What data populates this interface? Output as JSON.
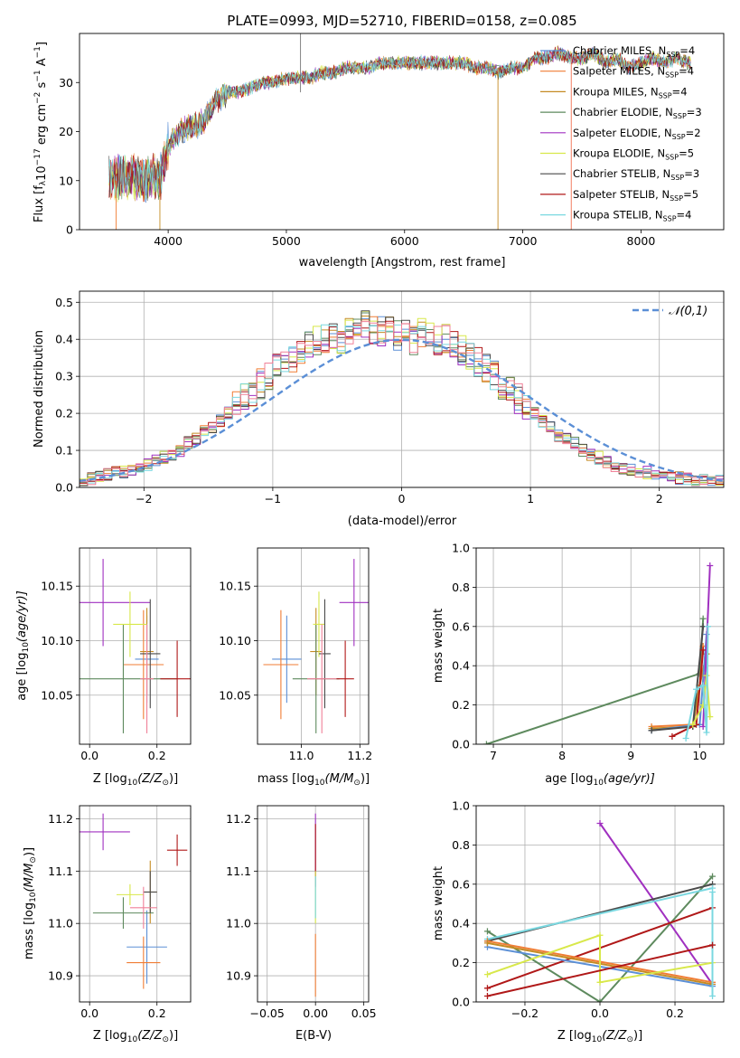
{
  "palette": {
    "Chabrier MILES": "#5b8fd6",
    "Salpeter MILES": "#f07d35",
    "Kroupa MILES": "#c58b23",
    "Chabrier ELODIE": "#5e8a5e",
    "Salpeter ELODIE": "#a030c0",
    "Kroupa ELODIE": "#d8e84a",
    "Chabrier STELIB": "#4a4a4a",
    "Salpeter STELIB": "#b01818",
    "Kroupa STELIB": "#7ad8e0",
    "gaussian": "#5b8fd6",
    "pink": "#f08098"
  },
  "chart_data": [
    {
      "id": "spectrum",
      "type": "line",
      "title": "PLATE=0993, MJD=52710, FIBERID=0158, z=0.085",
      "xlabel": "wavelength [Angstrom, rest frame]",
      "ylabel": "Flux [f",
      "ylabel_unit": "10",
      "ylabel_tail": " erg cm",
      "ylabel_tail2": " s",
      "ylabel_tail3": " A",
      "xlim": [
        3250,
        8700
      ],
      "ylim": [
        0,
        40
      ],
      "xticks": [
        4000,
        5000,
        6000,
        7000,
        8000
      ],
      "yticks": [
        0,
        10,
        20,
        30
      ],
      "legend_position": "right",
      "series": [
        {
          "name": "Chabrier MILES",
          "nssp": "4"
        },
        {
          "name": "Salpeter MILES",
          "nssp": "4"
        },
        {
          "name": "Kroupa MILES",
          "nssp": "4"
        },
        {
          "name": "Chabrier ELODIE",
          "nssp": "3"
        },
        {
          "name": "Salpeter ELODIE",
          "nssp": "2"
        },
        {
          "name": "Kroupa ELODIE",
          "nssp": "5"
        },
        {
          "name": "Chabrier STELIB",
          "nssp": "3"
        },
        {
          "name": "Salpeter STELIB",
          "nssp": "5"
        },
        {
          "name": "Kroupa STELIB",
          "nssp": "4"
        }
      ],
      "continuum": [
        [
          3500,
          10
        ],
        [
          3600,
          11
        ],
        [
          3700,
          11
        ],
        [
          3800,
          10
        ],
        [
          3850,
          11
        ],
        [
          3930,
          10
        ],
        [
          4000,
          17
        ],
        [
          4100,
          20
        ],
        [
          4200,
          21
        ],
        [
          4300,
          22
        ],
        [
          4400,
          26
        ],
        [
          4500,
          28
        ],
        [
          4600,
          28
        ],
        [
          4700,
          29
        ],
        [
          4800,
          30
        ],
        [
          4900,
          30
        ],
        [
          5000,
          31
        ],
        [
          5100,
          31
        ],
        [
          5200,
          31
        ],
        [
          5300,
          32
        ],
        [
          5400,
          32
        ],
        [
          5500,
          33
        ],
        [
          5600,
          33
        ],
        [
          5700,
          33
        ],
        [
          5800,
          34
        ],
        [
          5900,
          34
        ],
        [
          6000,
          34
        ],
        [
          6100,
          34
        ],
        [
          6200,
          34
        ],
        [
          6300,
          34
        ],
        [
          6400,
          34
        ],
        [
          6500,
          34
        ],
        [
          6600,
          33
        ],
        [
          6700,
          33
        ],
        [
          6800,
          32
        ],
        [
          6900,
          33
        ],
        [
          7000,
          33
        ],
        [
          7100,
          35
        ],
        [
          7200,
          35
        ],
        [
          7300,
          36
        ],
        [
          7400,
          35
        ],
        [
          7500,
          35
        ],
        [
          7600,
          36
        ],
        [
          7700,
          34
        ],
        [
          7800,
          35
        ],
        [
          7900,
          33
        ],
        [
          8000,
          34
        ],
        [
          8100,
          35
        ],
        [
          8200,
          34
        ],
        [
          8300,
          35
        ],
        [
          8400,
          34
        ]
      ],
      "features": {
        "gray_spike": [
          5120,
          40
        ],
        "green_line": [
          6790,
          0
        ],
        "red_line": [
          7410,
          0
        ],
        "gray_drop": [
          3930,
          0
        ],
        "orange_drop": [
          3560,
          0
        ]
      }
    },
    {
      "id": "residual_hist",
      "type": "line",
      "xlabel": "(data-model)/error",
      "ylabel": "Normed distribution",
      "xlim": [
        -2.5,
        2.5
      ],
      "ylim": [
        0,
        0.53
      ],
      "xticks": [
        -2,
        -1,
        0,
        1,
        2
      ],
      "yticks": [
        0,
        0.1,
        0.2,
        0.3,
        0.4,
        0.5
      ],
      "legend": "𝒩(0,1)",
      "legend_position": "top-right",
      "bin_width": 0.1,
      "bin_start": -2.5,
      "base_hist": [
        0.02,
        0.025,
        0.03,
        0.035,
        0.04,
        0.04,
        0.05,
        0.05,
        0.06,
        0.07,
        0.08,
        0.09,
        0.1,
        0.12,
        0.13,
        0.15,
        0.16,
        0.18,
        0.2,
        0.22,
        0.24,
        0.26,
        0.28,
        0.3,
        0.32,
        0.34,
        0.35,
        0.37,
        0.38,
        0.4,
        0.4,
        0.41,
        0.4,
        0.42,
        0.43,
        0.44,
        0.43,
        0.42,
        0.42,
        0.41,
        0.41,
        0.4,
        0.42,
        0.41,
        0.4,
        0.4,
        0.38,
        0.37,
        0.36,
        0.34,
        0.32,
        0.3,
        0.27,
        0.26,
        0.24,
        0.22,
        0.2,
        0.18,
        0.16,
        0.14,
        0.13,
        0.12,
        0.1,
        0.09,
        0.08,
        0.07,
        0.06,
        0.05,
        0.05,
        0.04,
        0.04,
        0.035,
        0.03,
        0.03,
        0.025,
        0.025,
        0.02,
        0.02,
        0.02,
        0.02
      ]
    },
    {
      "id": "age_vs_Z",
      "type": "scatter",
      "xlabel": "Z [log",
      "xlabel_sub": "10",
      "xlabel_tail": "(Z/Z",
      "ylabel": "age  [log",
      "ylabel_sub": "10",
      "ylabel_tail": "(age/yr)]",
      "xlim": [
        -0.03,
        0.3
      ],
      "ylim": [
        10.005,
        10.185
      ],
      "xticks": [
        0.0,
        0.2
      ],
      "yticks": [
        10.05,
        10.1,
        10.15
      ],
      "points": [
        {
          "series": "Chabrier MILES",
          "x": 0.17,
          "y": 10.083,
          "xerr": 0.035,
          "yerr": 0.04
        },
        {
          "series": "Salpeter MILES",
          "x": 0.16,
          "y": 10.078,
          "xerr": 0.06,
          "yerr": 0.05
        },
        {
          "series": "Kroupa MILES",
          "x": 0.17,
          "y": 10.09,
          "xerr": 0.02,
          "yerr": 0.04
        },
        {
          "series": "Chabrier ELODIE",
          "x": 0.1,
          "y": 10.065,
          "xerr": 0.16,
          "yerr": 0.05
        },
        {
          "series": "Salpeter ELODIE",
          "x": 0.04,
          "y": 10.135,
          "xerr": 0.14,
          "yerr": 0.04
        },
        {
          "series": "Kroupa ELODIE",
          "x": 0.12,
          "y": 10.115,
          "xerr": 0.05,
          "yerr": 0.03
        },
        {
          "series": "Chabrier STELIB",
          "x": 0.18,
          "y": 10.088,
          "xerr": 0.03,
          "yerr": 0.05
        },
        {
          "series": "Salpeter STELIB",
          "x": 0.26,
          "y": 10.065,
          "xerr": 0.05,
          "yerr": 0.035
        },
        {
          "series": "pink",
          "x": 0.17,
          "y": 10.065,
          "xerr": 0.02,
          "yerr": 0.05
        }
      ]
    },
    {
      "id": "age_vs_mass",
      "type": "scatter",
      "xlabel": "mass [log",
      "xlabel_sub": "10",
      "xlabel_tail": "(M/M",
      "xlim": [
        10.85,
        11.23
      ],
      "ylim": [
        10.005,
        10.185
      ],
      "xticks": [
        11.0,
        11.2
      ],
      "yticks": [
        10.05,
        10.1,
        10.15
      ],
      "points": [
        {
          "series": "Chabrier MILES",
          "x": 10.95,
          "y": 10.083,
          "xerr": 0.05,
          "yerr": 0.04
        },
        {
          "series": "Salpeter MILES",
          "x": 10.93,
          "y": 10.078,
          "xerr": 0.06,
          "yerr": 0.05
        },
        {
          "series": "Kroupa MILES",
          "x": 11.05,
          "y": 10.09,
          "xerr": 0.02,
          "yerr": 0.04
        },
        {
          "series": "Chabrier ELODIE",
          "x": 11.05,
          "y": 10.065,
          "xerr": 0.08,
          "yerr": 0.05
        },
        {
          "series": "Salpeter ELODIE",
          "x": 11.18,
          "y": 10.135,
          "xerr": 0.05,
          "yerr": 0.04
        },
        {
          "series": "Kroupa ELODIE",
          "x": 11.06,
          "y": 10.115,
          "xerr": 0.02,
          "yerr": 0.03
        },
        {
          "series": "Chabrier STELIB",
          "x": 11.08,
          "y": 10.088,
          "xerr": 0.02,
          "yerr": 0.05
        },
        {
          "series": "Salpeter STELIB",
          "x": 11.15,
          "y": 10.065,
          "xerr": 0.03,
          "yerr": 0.035
        },
        {
          "series": "pink",
          "x": 11.07,
          "y": 10.065,
          "xerr": 0.05,
          "yerr": 0.05
        }
      ]
    },
    {
      "id": "weight_vs_age",
      "type": "line",
      "xlabel": "age  [log",
      "xlabel_sub": "10",
      "xlabel_tail": "(age/yr)]",
      "ylabel": "mass weight",
      "xlim": [
        6.75,
        10.35
      ],
      "ylim": [
        0,
        1
      ],
      "xticks": [
        7,
        8,
        9,
        10
      ],
      "yticks": [
        0.0,
        0.2,
        0.4,
        0.6,
        0.8,
        1.0
      ],
      "series": [
        {
          "name": "Chabrier ELODIE",
          "points": [
            [
              6.9,
              0.0
            ],
            [
              10.0,
              0.36
            ],
            [
              10.05,
              0.64
            ]
          ]
        },
        {
          "name": "Salpeter MILES",
          "points": [
            [
              9.3,
              0.09
            ],
            [
              9.9,
              0.1
            ],
            [
              10.0,
              0.3
            ],
            [
              10.05,
              0.5
            ]
          ]
        },
        {
          "name": "Kroupa MILES",
          "points": [
            [
              9.3,
              0.08
            ],
            [
              9.9,
              0.09
            ],
            [
              10.0,
              0.3
            ],
            [
              10.1,
              0.46
            ]
          ]
        },
        {
          "name": "Chabrier MILES",
          "points": [
            [
              9.3,
              0.07
            ],
            [
              10.0,
              0.1
            ],
            [
              10.1,
              0.56
            ]
          ]
        },
        {
          "name": "Chabrier STELIB",
          "points": [
            [
              9.3,
              0.07
            ],
            [
              9.9,
              0.09
            ],
            [
              10.05,
              0.6
            ]
          ]
        },
        {
          "name": "Salpeter STELIB",
          "points": [
            [
              9.6,
              0.04
            ],
            [
              9.95,
              0.1
            ],
            [
              10.05,
              0.48
            ]
          ]
        },
        {
          "name": "Salpeter ELODIE",
          "points": [
            [
              10.05,
              0.09
            ],
            [
              10.15,
              0.91
            ]
          ]
        },
        {
          "name": "Kroupa ELODIE",
          "points": [
            [
              9.9,
              0.1
            ],
            [
              10.05,
              0.2
            ],
            [
              10.1,
              0.35
            ],
            [
              10.15,
              0.14
            ]
          ]
        },
        {
          "name": "Kroupa STELIB",
          "points": [
            [
              9.8,
              0.03
            ],
            [
              9.95,
              0.28
            ],
            [
              10.05,
              0.3
            ],
            [
              10.1,
              0.06
            ],
            [
              10.12,
              0.6
            ]
          ]
        }
      ]
    },
    {
      "id": "mass_vs_Z",
      "type": "scatter",
      "xlabel": "Z [log",
      "xlabel_sub": "10",
      "xlabel_tail": "(Z/Z",
      "ylabel": "mass [log",
      "ylabel_sub": "10",
      "ylabel_tail": "(M/M",
      "xlim": [
        -0.03,
        0.3
      ],
      "ylim": [
        10.85,
        11.225
      ],
      "xticks": [
        0.0,
        0.2
      ],
      "yticks": [
        10.9,
        11.0,
        11.1,
        11.2
      ],
      "points": [
        {
          "series": "Chabrier MILES",
          "x": 0.17,
          "y": 10.955,
          "xerr": 0.06,
          "yerr": 0.07
        },
        {
          "series": "Salpeter MILES",
          "x": 0.16,
          "y": 10.925,
          "xerr": 0.05,
          "yerr": 0.05
        },
        {
          "series": "Kroupa MILES",
          "x": 0.18,
          "y": 11.06,
          "xerr": 0.02,
          "yerr": 0.06
        },
        {
          "series": "Chabrier ELODIE",
          "x": 0.1,
          "y": 11.02,
          "xerr": 0.09,
          "yerr": 0.03
        },
        {
          "series": "Salpeter ELODIE",
          "x": 0.04,
          "y": 11.175,
          "xerr": 0.08,
          "yerr": 0.035
        },
        {
          "series": "Kroupa ELODIE",
          "x": 0.12,
          "y": 11.055,
          "xerr": 0.04,
          "yerr": 0.02
        },
        {
          "series": "Chabrier STELIB",
          "x": 0.18,
          "y": 11.06,
          "xerr": 0.02,
          "yerr": 0.04
        },
        {
          "series": "Salpeter STELIB",
          "x": 0.26,
          "y": 11.14,
          "xerr": 0.03,
          "yerr": 0.03
        },
        {
          "series": "pink",
          "x": 0.16,
          "y": 11.03,
          "xerr": 0.04,
          "yerr": 0.04
        }
      ]
    },
    {
      "id": "mass_vs_ebv",
      "type": "scatter",
      "xlabel": "E(B-V)",
      "xlim": [
        -0.06,
        0.055
      ],
      "ylim": [
        10.85,
        11.225
      ],
      "xticks": [
        -0.05,
        0.0,
        0.05
      ],
      "yticks": [
        10.9,
        11.0,
        11.1,
        11.2
      ],
      "points": [
        {
          "series": "Salpeter ELODIE",
          "x": 0.0,
          "y": 11.14,
          "xerr": 0.0,
          "yerr": 0.07
        },
        {
          "series": "Salpeter STELIB",
          "x": 0.0,
          "y": 11.14,
          "xerr": 0.0,
          "yerr": 0.05
        },
        {
          "series": "Kroupa ELODIE",
          "x": 0.0,
          "y": 11.05,
          "xerr": 0.0,
          "yerr": 0.05
        },
        {
          "series": "Kroupa STELIB",
          "x": 0.0,
          "y": 11.05,
          "xerr": 0.0,
          "yerr": 0.04
        },
        {
          "series": "Salpeter MILES",
          "x": 0.0,
          "y": 10.92,
          "xerr": 0.0,
          "yerr": 0.06
        }
      ]
    },
    {
      "id": "weight_vs_Z",
      "type": "line",
      "xlabel": "Z [log",
      "xlabel_sub": "10",
      "xlabel_tail": "(Z/Z",
      "ylabel": "mass weight",
      "xlim": [
        -0.33,
        0.33
      ],
      "ylim": [
        0,
        1
      ],
      "xticks": [
        -0.2,
        0.0,
        0.2
      ],
      "yticks": [
        0.0,
        0.2,
        0.4,
        0.6,
        0.8,
        1.0
      ],
      "series": [
        {
          "name": "Salpeter ELODIE",
          "points": [
            [
              0.0,
              0.91
            ],
            [
              0.3,
              0.09
            ]
          ]
        },
        {
          "name": "Chabrier ELODIE",
          "points": [
            [
              -0.3,
              0.36
            ],
            [
              0.0,
              0.0
            ],
            [
              0.3,
              0.64
            ]
          ]
        },
        {
          "name": "Chabrier STELIB",
          "points": [
            [
              -0.3,
              0.31
            ],
            [
              0.3,
              0.6
            ]
          ]
        },
        {
          "name": "Kroupa STELIB",
          "points": [
            [
              -0.3,
              0.32
            ],
            [
              0.3,
              0.58
            ]
          ]
        },
        {
          "name": "Salpeter STELIB",
          "points": [
            [
              -0.3,
              0.07
            ],
            [
              0.3,
              0.48
            ]
          ]
        },
        {
          "name": "Chabrier MILES",
          "points": [
            [
              -0.3,
              0.28
            ],
            [
              0.3,
              0.08
            ]
          ]
        },
        {
          "name": "Salpeter MILES",
          "points": [
            [
              -0.3,
              0.31
            ],
            [
              0.3,
              0.1
            ]
          ]
        },
        {
          "name": "Kroupa MILES",
          "points": [
            [
              -0.3,
              0.3
            ],
            [
              0.3,
              0.09
            ]
          ]
        },
        {
          "name": "Kroupa ELODIE",
          "points": [
            [
              -0.3,
              0.14
            ],
            [
              0.0,
              0.34
            ],
            [
              0.0,
              0.1
            ],
            [
              0.3,
              0.2
            ]
          ]
        },
        {
          "name": "Kroupa STELIB",
          "points": [
            [
              0.3,
              0.56
            ],
            [
              0.3,
              0.03
            ]
          ]
        },
        {
          "name": "Salpeter STELIB",
          "points": [
            [
              -0.3,
              0.03
            ],
            [
              0.3,
              0.29
            ]
          ]
        }
      ]
    }
  ]
}
